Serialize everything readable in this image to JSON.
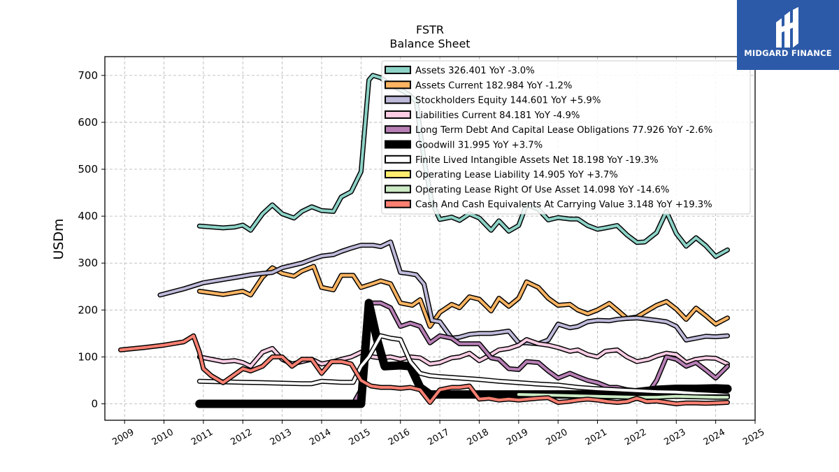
{
  "logo": {
    "text": "MIDGARD FINANCE",
    "bg": "#2c5aa8"
  },
  "chart_data": {
    "type": "line",
    "title": "FSTR",
    "subtitle": "Balance  Sheet",
    "xlabel": "",
    "ylabel": "USDm",
    "xlim": [
      2008.5,
      2025.0
    ],
    "ylim": [
      -35,
      740
    ],
    "xticks": [
      "2009",
      "2010",
      "2011",
      "2012",
      "2013",
      "2014",
      "2015",
      "2016",
      "2017",
      "2018",
      "2019",
      "2020",
      "2021",
      "2022",
      "2023",
      "2024",
      "2025"
    ],
    "yticks": [
      0,
      100,
      200,
      300,
      400,
      500,
      600,
      700
    ],
    "grid": true,
    "legend_position": "top-right",
    "series": [
      {
        "name": "Assets  326.401 YoY -3.0%",
        "color": "#8dd3c7",
        "width": 4,
        "x": [
          2010.9,
          2011.5,
          2011.8,
          2012,
          2012.2,
          2012.5,
          2012.75,
          2013,
          2013.3,
          2013.5,
          2013.75,
          2014,
          2014.3,
          2014.5,
          2014.75,
          2015,
          2015.2,
          2015.3,
          2015.5,
          2015.75,
          2016,
          2016.2,
          2016.4,
          2016.6,
          2016.8,
          2017,
          2017.3,
          2017.5,
          2017.75,
          2018,
          2018.3,
          2018.5,
          2018.75,
          2019,
          2019.2,
          2019.5,
          2019.75,
          2020,
          2020.3,
          2020.5,
          2020.75,
          2021,
          2021.2,
          2021.5,
          2021.75,
          2022,
          2022.2,
          2022.5,
          2022.75,
          2023,
          2023.25,
          2023.5,
          2023.75,
          2024,
          2024.3
        ],
        "y": [
          379,
          375,
          377,
          381,
          370,
          405,
          424,
          405,
          396,
          410,
          420,
          412,
          410,
          441,
          452,
          495,
          690,
          700,
          695,
          680,
          670,
          660,
          645,
          520,
          430,
          393,
          398,
          391,
          405,
          396,
          370,
          390,
          368,
          380,
          425,
          415,
          392,
          397,
          394,
          394,
          380,
          372,
          375,
          380,
          360,
          344,
          345,
          365,
          410,
          363,
          336,
          354,
          337,
          314,
          328
        ]
      },
      {
        "name": "Assets Current  182.984 YoY -1.2%",
        "color": "#fdb462",
        "width": 4,
        "x": [
          2010.9,
          2011.5,
          2012,
          2012.2,
          2012.5,
          2012.75,
          2013,
          2013.3,
          2013.5,
          2013.8,
          2014,
          2014.3,
          2014.5,
          2014.8,
          2015,
          2015.3,
          2015.5,
          2015.75,
          2016,
          2016.3,
          2016.5,
          2016.75,
          2017,
          2017.3,
          2017.5,
          2017.75,
          2018,
          2018.3,
          2018.5,
          2018.75,
          2019,
          2019.2,
          2019.5,
          2019.75,
          2020,
          2020.3,
          2020.5,
          2020.75,
          2021,
          2021.3,
          2021.5,
          2021.75,
          2022,
          2022.3,
          2022.5,
          2022.75,
          2023,
          2023.25,
          2023.5,
          2023.75,
          2024,
          2024.3
        ],
        "y": [
          240,
          233,
          240,
          232,
          270,
          290,
          278,
          272,
          283,
          293,
          248,
          243,
          274,
          274,
          248,
          256,
          262,
          256,
          215,
          210,
          222,
          165,
          195,
          212,
          205,
          228,
          223,
          198,
          225,
          208,
          225,
          260,
          248,
          225,
          210,
          212,
          200,
          192,
          200,
          214,
          200,
          182,
          185,
          200,
          210,
          218,
          202,
          180,
          204,
          188,
          170,
          183
        ]
      },
      {
        "name": "Stockholders Equity  144.601 YoY +5.9%",
        "color": "#bebada",
        "width": 4,
        "x": [
          2009.9,
          2010.5,
          2011,
          2011.5,
          2012,
          2012.2,
          2012.5,
          2012.75,
          2013,
          2013.5,
          2013.75,
          2014,
          2014.3,
          2014.5,
          2014.75,
          2015,
          2015.3,
          2015.5,
          2015.75,
          2016,
          2016.2,
          2016.4,
          2016.6,
          2016.8,
          2017,
          2017.3,
          2017.5,
          2017.75,
          2018,
          2018.3,
          2018.5,
          2018.75,
          2019,
          2019.2,
          2019.5,
          2019.75,
          2020,
          2020.3,
          2020.5,
          2020.75,
          2021,
          2021.3,
          2021.5,
          2021.75,
          2022,
          2022.3,
          2022.5,
          2022.75,
          2023,
          2023.25,
          2023.5,
          2023.75,
          2024,
          2024.3
        ],
        "y": [
          232,
          245,
          258,
          265,
          272,
          275,
          278,
          280,
          290,
          300,
          308,
          315,
          318,
          325,
          332,
          338,
          338,
          335,
          345,
          280,
          278,
          275,
          255,
          178,
          175,
          140,
          142,
          148,
          150,
          150,
          152,
          155,
          130,
          130,
          128,
          136,
          170,
          162,
          165,
          175,
          178,
          177,
          180,
          182,
          183,
          180,
          178,
          175,
          165,
          136,
          140,
          144,
          143,
          145
        ]
      },
      {
        "name": "Liabilities Current  84.181 YoY -4.9%",
        "color": "#fccde5",
        "width": 4,
        "x": [
          2010.9,
          2011.5,
          2011.8,
          2012,
          2012.2,
          2012.5,
          2012.75,
          2013,
          2013.25,
          2013.5,
          2013.75,
          2014,
          2014.3,
          2014.5,
          2014.75,
          2015,
          2015.3,
          2015.5,
          2015.75,
          2016,
          2016.25,
          2016.5,
          2016.75,
          2017,
          2017.3,
          2017.5,
          2017.75,
          2018,
          2018.3,
          2018.5,
          2018.75,
          2019,
          2019.2,
          2019.5,
          2019.75,
          2020,
          2020.3,
          2020.5,
          2020.75,
          2021,
          2021.2,
          2021.5,
          2021.75,
          2022,
          2022.3,
          2022.5,
          2022.75,
          2023,
          2023.25,
          2023.5,
          2023.75,
          2024,
          2024.3
        ],
        "y": [
          100,
          90,
          92,
          88,
          80,
          110,
          118,
          95,
          85,
          90,
          95,
          85,
          90,
          95,
          100,
          110,
          100,
          98,
          100,
          95,
          100,
          98,
          85,
          88,
          98,
          100,
          108,
          92,
          105,
          115,
          118,
          125,
          137,
          128,
          125,
          120,
          112,
          115,
          105,
          100,
          112,
          115,
          100,
          90,
          95,
          102,
          108,
          105,
          88,
          95,
          98,
          97,
          85
        ]
      },
      {
        "name": "Long Term Debt And Capital Lease Obligations  77.926 YoY -2.6%",
        "color": "#b77fb5",
        "width": 4,
        "x": [
          2010.9,
          2011.5,
          2012,
          2012.5,
          2013,
          2013.5,
          2014,
          2014.5,
          2014.8,
          2015,
          2015.2,
          2015.5,
          2015.75,
          2016,
          2016.25,
          2016.5,
          2016.75,
          2017,
          2017.3,
          2017.5,
          2017.75,
          2018,
          2018.3,
          2018.5,
          2018.75,
          2019,
          2019.2,
          2019.5,
          2019.75,
          2020,
          2020.3,
          2020.5,
          2020.75,
          2021,
          2021.3,
          2021.5,
          2021.75,
          2022,
          2022.3,
          2022.5,
          2022.75,
          2023,
          2023.25,
          2023.5,
          2023.75,
          2024,
          2024.3
        ],
        "y": [
          3,
          1,
          0,
          0,
          0,
          0,
          0,
          0,
          0,
          30,
          215,
          215,
          205,
          165,
          172,
          165,
          130,
          145,
          140,
          128,
          128,
          128,
          98,
          95,
          75,
          73,
          90,
          88,
          70,
          55,
          65,
          58,
          50,
          45,
          35,
          35,
          30,
          28,
          25,
          50,
          100,
          95,
          80,
          88,
          72,
          55,
          80
        ]
      },
      {
        "name": "Goodwill  31.995 YoY +3.7%",
        "color": "#000000",
        "width": 9,
        "x": [
          2010.9,
          2011.5,
          2012,
          2012.5,
          2013,
          2013.5,
          2013.75,
          2014,
          2014.5,
          2014.8,
          2015,
          2015.2,
          2015.4,
          2015.5,
          2015.6,
          2016,
          2016.25,
          2016.5,
          2016.75,
          2017,
          2017.5,
          2018,
          2018.5,
          2019,
          2019.5,
          2020,
          2020.5,
          2021,
          2021.5,
          2022,
          2022.5,
          2023,
          2023.5,
          2024,
          2024.3
        ],
        "y": [
          0,
          0,
          0,
          0,
          0,
          0,
          0,
          0,
          0,
          0,
          0,
          215,
          140,
          110,
          80,
          82,
          80,
          35,
          20,
          20,
          20,
          20,
          20,
          20,
          20,
          20,
          20,
          20,
          22,
          25,
          30,
          32,
          32,
          33,
          32
        ]
      },
      {
        "name": "Finite Lived Intangible Assets Net  18.198 YoY -19.3%",
        "color": "#ffffff",
        "width": 4,
        "x": [
          2010.9,
          2011.5,
          2012,
          2012.5,
          2013,
          2013.5,
          2013.75,
          2014,
          2014.5,
          2014.8,
          2015,
          2015.2,
          2015.5,
          2015.75,
          2016,
          2016.25,
          2016.5,
          2016.75,
          2017,
          2017.5,
          2018,
          2018.5,
          2019,
          2019.5,
          2020,
          2020.5,
          2021,
          2021.5,
          2022,
          2022.5,
          2023,
          2023.5,
          2024,
          2024.3
        ],
        "y": [
          48,
          47,
          46,
          45,
          44,
          43,
          43,
          48,
          46,
          46,
          80,
          100,
          145,
          140,
          137,
          90,
          65,
          60,
          58,
          55,
          52,
          48,
          45,
          42,
          40,
          35,
          32,
          30,
          28,
          26,
          25,
          22,
          20,
          18
        ]
      },
      {
        "name": "Operating Lease Liability  14.905 YoY +3.7%",
        "color": "#ffed6f",
        "width": 4,
        "x": [
          2019.0,
          2019.5,
          2020,
          2020.5,
          2021,
          2021.5,
          2022,
          2022.5,
          2023,
          2023.5,
          2024,
          2024.3
        ],
        "y": [
          18,
          17,
          17,
          16,
          15,
          15,
          15,
          16,
          16,
          15,
          15,
          15
        ]
      },
      {
        "name": "Operating Lease Right Of Use Asset  14.098 YoY -14.6%",
        "color": "#ccebc5",
        "width": 4,
        "x": [
          2019.0,
          2019.5,
          2020,
          2020.5,
          2021,
          2021.5,
          2022,
          2022.5,
          2023,
          2023.5,
          2024,
          2024.3
        ],
        "y": [
          20,
          19,
          18,
          17,
          16,
          15,
          14,
          14,
          16,
          15,
          14,
          14
        ]
      },
      {
        "name": "Cash And Cash Equivalents At Carrying Value  3.148 YoY +19.3%",
        "color": "#fb8072",
        "width": 4,
        "x": [
          2008.9,
          2009.5,
          2010,
          2010.5,
          2010.75,
          2010.9,
          2011,
          2011.2,
          2011.5,
          2011.75,
          2012,
          2012.2,
          2012.5,
          2012.75,
          2013,
          2013.25,
          2013.5,
          2013.75,
          2014,
          2014.25,
          2014.5,
          2014.75,
          2015,
          2015.25,
          2015.5,
          2015.75,
          2016,
          2016.25,
          2016.5,
          2016.75,
          2017,
          2017.3,
          2017.5,
          2017.75,
          2018,
          2018.25,
          2018.5,
          2018.75,
          2019,
          2019.25,
          2019.5,
          2019.75,
          2020,
          2020.25,
          2020.5,
          2020.75,
          2021,
          2021.25,
          2021.5,
          2021.75,
          2022,
          2022.25,
          2022.5,
          2022.75,
          2023,
          2023.25,
          2023.5,
          2023.75,
          2024,
          2024.3
        ],
        "y": [
          115,
          120,
          125,
          132,
          145,
          110,
          75,
          60,
          45,
          60,
          75,
          70,
          80,
          100,
          100,
          80,
          95,
          95,
          65,
          90,
          90,
          85,
          50,
          38,
          35,
          35,
          33,
          35,
          30,
          3,
          30,
          35,
          35,
          38,
          10,
          12,
          8,
          10,
          8,
          10,
          12,
          13,
          3,
          5,
          8,
          10,
          8,
          5,
          3,
          5,
          12,
          5,
          6,
          3,
          0,
          2,
          2,
          1,
          2,
          3
        ]
      }
    ]
  }
}
